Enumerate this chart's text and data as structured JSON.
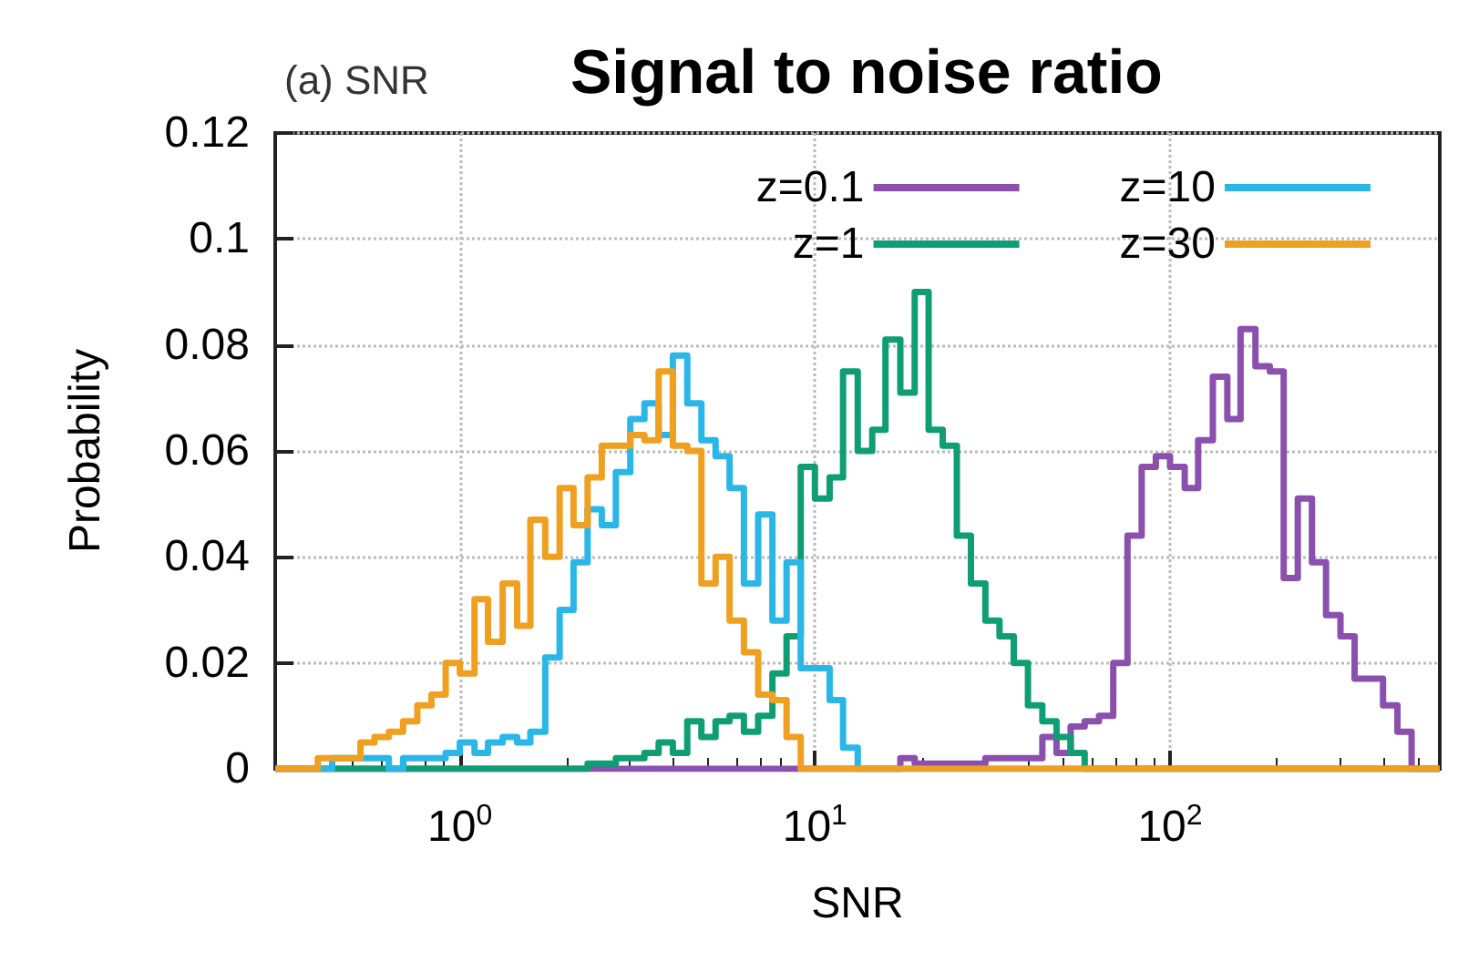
{
  "chart_data": {
    "type": "histogram",
    "title": "Signal to noise ratio",
    "subtitle": "(a) SNR",
    "xlabel": "SNR",
    "ylabel": "Probability",
    "log": "x",
    "grid": true,
    "legend": "top right",
    "line_style": "solid",
    "xlim": [
      0.302,
      575
    ],
    "ylim": [
      0,
      0.12
    ],
    "xticks": [
      {
        "value": 1,
        "label": "10$^{0}$"
      },
      {
        "value": 10,
        "label": "10$^{1}$"
      },
      {
        "value": 100,
        "label": "10$^{2}$"
      }
    ],
    "yticks": [
      0,
      0.02,
      0.04,
      0.06,
      0.08,
      0.1,
      0.12
    ],
    "bins": [
      0.302,
      0.331,
      0.363,
      0.398,
      0.437,
      0.479,
      0.525,
      0.575,
      0.631,
      0.692,
      0.759,
      0.832,
      0.912,
      1,
      1.1,
      1.2,
      1.32,
      1.45,
      1.58,
      1.74,
      1.91,
      2.09,
      2.29,
      2.51,
      2.75,
      3.02,
      3.31,
      3.63,
      3.98,
      4.37,
      4.79,
      5.25,
      5.75,
      6.31,
      6.92,
      7.59,
      8.32,
      9.12,
      10,
      11.0,
      12.0,
      13.2,
      14.5,
      15.8,
      17.4,
      19.1,
      20.9,
      22.9,
      25.1,
      27.5,
      30.2,
      33.1,
      36.3,
      39.8,
      43.7,
      47.9,
      52.5,
      57.5,
      63.1,
      69.2,
      75.9,
      83.2,
      91.2,
      100,
      110,
      120,
      132,
      145,
      158,
      174,
      191,
      209,
      229,
      251,
      275,
      302,
      331,
      363,
      398,
      437,
      479,
      525,
      575
    ],
    "series": [
      {
        "name": "z=0.1",
        "color": "#8b4fae",
        "values": [
          0,
          0,
          0,
          0,
          0,
          0,
          0,
          0,
          0,
          0,
          0,
          0,
          0,
          0,
          0,
          0,
          0,
          0,
          0,
          0,
          0,
          0,
          0,
          0,
          0,
          0,
          0,
          0,
          0,
          0,
          0,
          0,
          0,
          0,
          0,
          0,
          0,
          0,
          0,
          0,
          0,
          0,
          0,
          0,
          0.002,
          0.001,
          0.001,
          0.001,
          0.001,
          0.001,
          0.002,
          0.002,
          0.002,
          0.002,
          0.006,
          0.003,
          0.008,
          0.009,
          0.01,
          0.02,
          0.044,
          0.057,
          0.059,
          0.057,
          0.053,
          0.062,
          0.074,
          0.066,
          0.083,
          0.076,
          0.075,
          0.036,
          0.051,
          0.039,
          0.029,
          0.025,
          0.017,
          0.017,
          0.012,
          0.007,
          0,
          0
        ]
      },
      {
        "name": "z=1",
        "color": "#0f9e74",
        "values": [
          0,
          0,
          0,
          0,
          0,
          0,
          0,
          0,
          0,
          0,
          0,
          0,
          0,
          0,
          0,
          0,
          0,
          0,
          0,
          0,
          0,
          0,
          0.001,
          0.001,
          0.002,
          0.002,
          0.003,
          0.005,
          0.003,
          0.009,
          0.006,
          0.009,
          0.01,
          0.007,
          0.01,
          0.018,
          0.025,
          0.057,
          0.051,
          0.055,
          0.075,
          0.06,
          0.064,
          0.081,
          0.071,
          0.09,
          0.064,
          0.061,
          0.044,
          0.035,
          0.028,
          0.025,
          0.02,
          0.012,
          0.009,
          0.006,
          0.003,
          0,
          0,
          0,
          0,
          0,
          0,
          0,
          0,
          0,
          0,
          0,
          0,
          0,
          0,
          0,
          0,
          0,
          0,
          0,
          0,
          0,
          0,
          0,
          0,
          0
        ]
      },
      {
        "name": "z=10",
        "color": "#2ab7e8",
        "values": [
          0,
          0,
          0,
          0,
          0.002,
          0.002,
          0.002,
          0.002,
          0,
          0.002,
          0.002,
          0.002,
          0.003,
          0.005,
          0.003,
          0.005,
          0.006,
          0.005,
          0.007,
          0.021,
          0.03,
          0.039,
          0.049,
          0.046,
          0.056,
          0.066,
          0.069,
          0.063,
          0.078,
          0.069,
          0.062,
          0.059,
          0.053,
          0.035,
          0.048,
          0.028,
          0.039,
          0.019,
          0.019,
          0.013,
          0.004,
          0,
          0,
          0,
          0,
          0,
          0,
          0,
          0,
          0,
          0,
          0,
          0,
          0,
          0,
          0,
          0,
          0,
          0,
          0,
          0,
          0,
          0,
          0,
          0,
          0,
          0,
          0,
          0,
          0,
          0,
          0,
          0,
          0,
          0,
          0,
          0,
          0,
          0,
          0,
          0,
          0
        ]
      },
      {
        "name": "z=30",
        "color": "#f0a020",
        "values": [
          0,
          0,
          0,
          0.002,
          0.002,
          0.002,
          0.005,
          0.006,
          0.007,
          0.009,
          0.012,
          0.014,
          0.02,
          0.018,
          0.032,
          0.024,
          0.035,
          0.027,
          0.047,
          0.04,
          0.053,
          0.046,
          0.055,
          0.061,
          0.061,
          0.063,
          0.062,
          0.075,
          0.061,
          0.06,
          0.035,
          0.04,
          0.028,
          0.022,
          0.014,
          0.013,
          0.006,
          0,
          0,
          0,
          0,
          0,
          0,
          0,
          0,
          0,
          0,
          0,
          0,
          0,
          0,
          0,
          0,
          0,
          0,
          0,
          0,
          0,
          0,
          0,
          0,
          0,
          0,
          0,
          0,
          0,
          0,
          0,
          0,
          0,
          0,
          0,
          0,
          0,
          0,
          0,
          0,
          0,
          0,
          0,
          0,
          0
        ]
      }
    ]
  }
}
